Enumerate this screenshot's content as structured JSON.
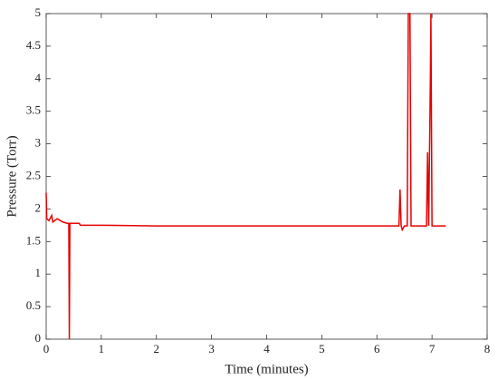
{
  "chart_data": {
    "type": "line",
    "xlabel": "Time (minutes)",
    "ylabel": "Pressure (Torr)",
    "x": [
      0,
      0.01,
      0.05,
      0.1,
      0.12,
      0.2,
      0.3,
      0.38,
      0.41,
      0.42,
      0.43,
      0.6,
      0.62,
      1,
      2,
      3,
      4,
      5,
      6,
      6.4,
      6.42,
      6.44,
      6.46,
      6.5,
      6.55,
      6.57,
      6.6,
      6.62,
      6.9,
      6.92,
      6.94,
      6.97,
      6.98,
      7.0,
      7.25
    ],
    "values": [
      2.25,
      1.85,
      1.82,
      1.9,
      1.8,
      1.85,
      1.8,
      1.78,
      1.78,
      0,
      1.78,
      1.78,
      1.75,
      1.75,
      1.74,
      1.74,
      1.74,
      1.74,
      1.74,
      1.74,
      2.3,
      1.74,
      1.68,
      1.74,
      1.74,
      5,
      5,
      1.74,
      1.74,
      2.87,
      1.74,
      4.0,
      5,
      1.74,
      1.74
    ],
    "color": "#e60000",
    "xlim": [
      0,
      8
    ],
    "xticks": [
      0,
      1,
      2,
      3,
      4,
      5,
      6,
      7,
      8
    ],
    "ylim": [
      0,
      5
    ],
    "yticks": [
      0,
      0.5,
      1,
      1.5,
      2,
      2.5,
      3,
      3.5,
      4,
      4.5,
      5
    ],
    "grid": false
  }
}
